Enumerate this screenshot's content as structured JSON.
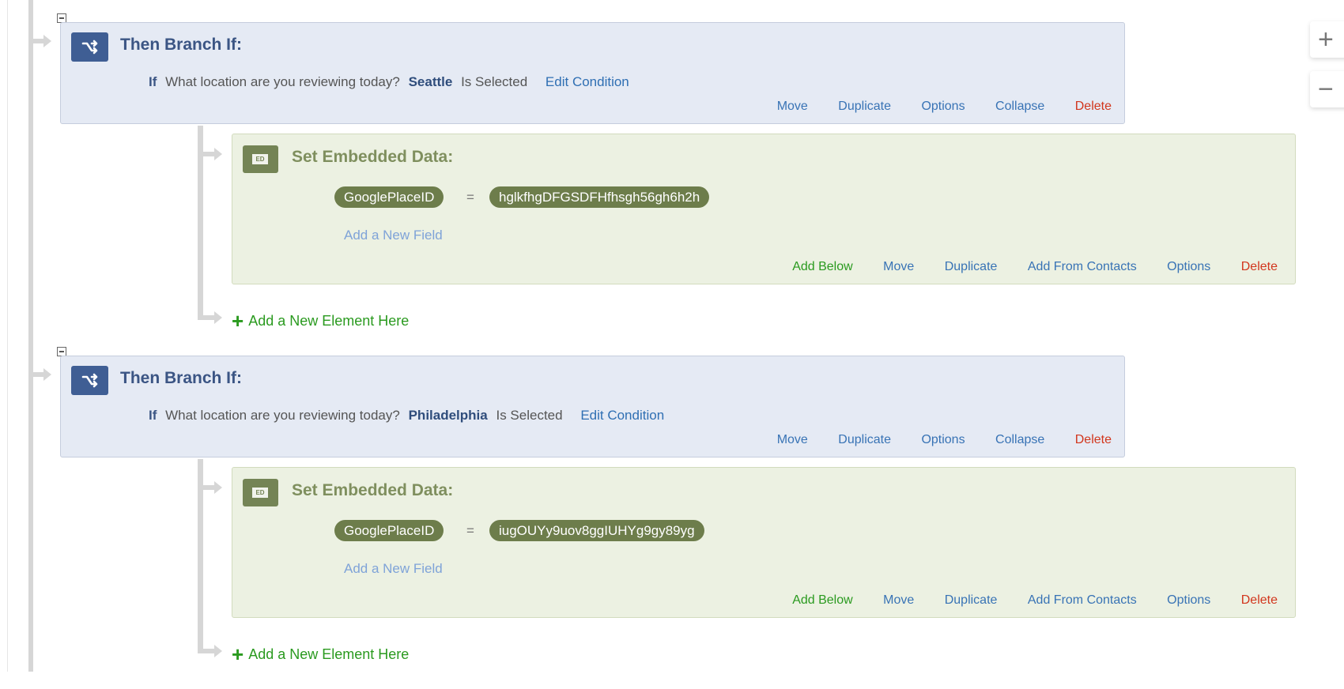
{
  "branches": [
    {
      "title": "Then Branch If:",
      "condition": {
        "keyword": "If",
        "question": "What location are you reviewing today?",
        "choice": "Seattle",
        "operator": "Is Selected",
        "edit_label": "Edit Condition"
      },
      "actions": {
        "move": "Move",
        "duplicate": "Duplicate",
        "options": "Options",
        "collapse": "Collapse",
        "delete": "Delete"
      },
      "embedded": {
        "icon_label": "ED",
        "title": "Set Embedded Data:",
        "field": "GooglePlaceID",
        "equals": "=",
        "value": "hglkfhgDFGSDFHfhsgh56gh6h2h",
        "add_field": "Add a New Field",
        "actions": {
          "add_below": "Add Below",
          "move": "Move",
          "duplicate": "Duplicate",
          "add_from_contacts": "Add From Contacts",
          "options": "Options",
          "delete": "Delete"
        }
      },
      "add_element": "Add a New Element Here"
    },
    {
      "title": "Then Branch If:",
      "condition": {
        "keyword": "If",
        "question": "What location are you reviewing today?",
        "choice": "Philadelphia",
        "operator": "Is Selected",
        "edit_label": "Edit Condition"
      },
      "actions": {
        "move": "Move",
        "duplicate": "Duplicate",
        "options": "Options",
        "collapse": "Collapse",
        "delete": "Delete"
      },
      "embedded": {
        "icon_label": "ED",
        "title": "Set Embedded Data:",
        "field": "GooglePlaceID",
        "equals": "=",
        "value": "iugOUYy9uov8ggIUHYg9gy89yg",
        "add_field": "Add a New Field",
        "actions": {
          "add_below": "Add Below",
          "move": "Move",
          "duplicate": "Duplicate",
          "add_from_contacts": "Add From Contacts",
          "options": "Options",
          "delete": "Delete"
        }
      },
      "add_element": "Add a New Element Here"
    }
  ],
  "zoom_controls": {
    "zoom_in": "+",
    "zoom_out": "−"
  },
  "colors": {
    "branch_bg": "#e5eaf4",
    "branch_accent": "#3f5e94",
    "embedded_bg": "#ecf1e2",
    "embedded_accent": "#6d7d4b",
    "link": "#3873b5",
    "delete": "#d2361d",
    "add": "#2a9a1f"
  }
}
